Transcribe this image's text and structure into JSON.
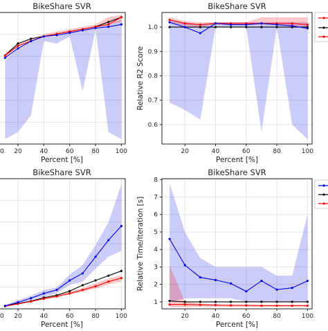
{
  "chart_data": [
    {
      "type": "line",
      "title": "BikeShare SVR",
      "xlabel": "Percent [%]",
      "ylabel": "",
      "x": [
        10,
        20,
        30,
        40,
        50,
        60,
        70,
        80,
        90,
        100
      ],
      "xlim": [
        5,
        103
      ],
      "ylim": [
        0.5,
        1.05
      ],
      "x_ticks": [
        20,
        40,
        60,
        80,
        100
      ],
      "x_tick_labels": [
        "20",
        "40",
        "60",
        "80",
        "100"
      ],
      "y_ticks": [],
      "y_tick_labels": [],
      "grid": true,
      "bands": [
        {
          "color": "#0000e0",
          "lower": [
            0.52,
            0.55,
            0.62,
            0.93,
            0.92,
            0.95,
            0.72,
            0.98,
            0.55,
            0.52
          ],
          "upper": [
            0.85,
            0.9,
            0.93,
            0.95,
            0.95,
            0.97,
            0.97,
            0.99,
            1.0,
            1.02
          ]
        },
        {
          "color": "#ff0000",
          "lower": [
            0.86,
            0.91,
            0.93,
            0.95,
            0.96,
            0.97,
            0.98,
            0.99,
            1.0,
            1.01
          ],
          "upper": [
            0.88,
            0.92,
            0.94,
            0.96,
            0.97,
            0.98,
            0.99,
            1.0,
            1.03,
            1.04
          ]
        }
      ],
      "series": [
        {
          "color": "#000000",
          "values": [
            0.87,
            0.92,
            0.94,
            0.95,
            0.96,
            0.97,
            0.98,
            0.99,
            1.01,
            1.03
          ]
        },
        {
          "color": "#ff0000",
          "values": [
            0.87,
            0.91,
            0.93,
            0.95,
            0.96,
            0.97,
            0.98,
            0.99,
            1.0,
            1.03
          ]
        },
        {
          "color": "#0000e0",
          "values": [
            0.86,
            0.9,
            0.93,
            0.95,
            0.955,
            0.965,
            0.975,
            0.985,
            0.99,
            1.0
          ]
        }
      ]
    },
    {
      "type": "line",
      "title": "BikeShare SVR",
      "xlabel": "Percent [%]",
      "ylabel": "Relative R2 Score",
      "x": [
        10,
        20,
        30,
        40,
        50,
        60,
        70,
        80,
        90,
        100
      ],
      "xlim": [
        5,
        103
      ],
      "ylim": [
        0.52,
        1.06
      ],
      "x_ticks": [
        20,
        40,
        60,
        80,
        100
      ],
      "x_tick_labels": [
        "20",
        "40",
        "60",
        "80",
        "100"
      ],
      "y_ticks": [
        0.6,
        0.7,
        0.8,
        0.9,
        1.0
      ],
      "y_tick_labels": [
        "0.6",
        "0.7",
        "0.8",
        "0.9",
        "1.0"
      ],
      "grid": true,
      "bands": [
        {
          "color": "#0000e0",
          "lower": [
            0.69,
            0.66,
            0.62,
            1.0,
            1.0,
            1.0,
            0.57,
            1.0,
            0.6,
            0.54
          ],
          "upper": [
            1.025,
            1.02,
            1.01,
            1.02,
            1.02,
            1.02,
            1.02,
            1.02,
            1.02,
            1.02
          ]
        },
        {
          "color": "#ff0000",
          "lower": [
            1.02,
            1.005,
            1.0,
            1.01,
            1.01,
            1.01,
            1.01,
            1.01,
            1.005,
            1.0
          ],
          "upper": [
            1.04,
            1.025,
            1.02,
            1.02,
            1.02,
            1.02,
            1.04,
            1.04,
            1.04,
            1.04
          ]
        }
      ],
      "series": [
        {
          "color": "#000000",
          "values": [
            1.0,
            1.0,
            1.0,
            1.0,
            1.0,
            1.0,
            1.0,
            1.0,
            1.0,
            1.0
          ]
        },
        {
          "color": "#ff0000",
          "values": [
            1.03,
            1.015,
            1.01,
            1.015,
            1.015,
            1.015,
            1.015,
            1.015,
            1.015,
            1.01
          ]
        },
        {
          "color": "#0000e0",
          "values": [
            1.02,
            1.0,
            0.975,
            1.015,
            1.01,
            1.01,
            1.015,
            1.01,
            1.005,
            0.995
          ]
        }
      ]
    },
    {
      "type": "line",
      "title": "BikeShare SVR",
      "xlabel": "Percent [%]",
      "ylabel": "",
      "x": [
        10,
        20,
        30,
        40,
        50,
        60,
        70,
        80,
        90,
        100
      ],
      "xlim": [
        5,
        103
      ],
      "ylim": [
        0,
        11
      ],
      "x_ticks": [
        20,
        40,
        60,
        80,
        100
      ],
      "x_tick_labels": [
        "20",
        "40",
        "60",
        "80",
        "100"
      ],
      "y_ticks": [],
      "y_tick_labels": [],
      "grid": true,
      "bands": [
        {
          "color": "#0000e0",
          "lower": [
            0.15,
            0.4,
            0.75,
            1.05,
            1.3,
            2.0,
            2.3,
            3.4,
            4.4,
            4.9
          ],
          "upper": [
            0.3,
            0.75,
            1.1,
            1.6,
            1.8,
            2.9,
            3.7,
            5.4,
            7.3,
            10.5
          ]
        },
        {
          "color": "#ff0000",
          "lower": [
            0.2,
            0.4,
            0.6,
            0.8,
            1.0,
            1.2,
            1.45,
            1.7,
            2.05,
            2.3
          ],
          "upper": [
            0.25,
            0.45,
            0.7,
            0.95,
            1.15,
            1.45,
            1.75,
            2.15,
            2.55,
            2.85
          ]
        }
      ],
      "series": [
        {
          "color": "#000000",
          "values": [
            0.25,
            0.45,
            0.65,
            0.95,
            1.15,
            1.5,
            2.0,
            2.4,
            2.8,
            3.2
          ]
        },
        {
          "color": "#ff0000",
          "values": [
            0.22,
            0.42,
            0.62,
            0.85,
            1.05,
            1.3,
            1.6,
            1.9,
            2.3,
            2.6
          ]
        },
        {
          "color": "#0000e0",
          "values": [
            0.25,
            0.55,
            0.9,
            1.3,
            1.6,
            2.4,
            3.0,
            4.4,
            5.8,
            7.0
          ]
        }
      ]
    },
    {
      "type": "line",
      "title": "BikeShare SVR",
      "xlabel": "Percent [%]",
      "ylabel": "Relative Time/Iteration [s]",
      "x": [
        10,
        20,
        30,
        40,
        50,
        60,
        70,
        80,
        90,
        100
      ],
      "xlim": [
        5,
        103
      ],
      "ylim": [
        0.6,
        8.05
      ],
      "x_ticks": [
        20,
        40,
        60,
        80,
        100
      ],
      "x_tick_labels": [
        "20",
        "40",
        "60",
        "80",
        "100"
      ],
      "y_ticks": [
        1,
        2,
        3,
        4,
        5,
        6,
        7,
        8
      ],
      "y_tick_labels": [
        "1",
        "2",
        "3",
        "4",
        "5",
        "6",
        "7",
        "8"
      ],
      "grid": true,
      "bands": [
        {
          "color": "#0000e0",
          "lower": [
            1.0,
            1.2,
            1.2,
            1.2,
            1.2,
            1.0,
            1.0,
            1.0,
            1.0,
            1.0
          ],
          "upper": [
            7.8,
            5.0,
            3.5,
            3.0,
            3.0,
            3.0,
            3.0,
            2.5,
            2.5,
            6.0
          ]
        },
        {
          "color": "#ff0000",
          "lower": [
            0.7,
            0.7,
            0.72,
            0.72,
            0.72,
            0.72,
            0.72,
            0.72,
            0.72,
            0.72
          ],
          "upper": [
            3.1,
            1.0,
            0.9,
            0.85,
            0.85,
            0.85,
            0.85,
            0.85,
            0.85,
            0.85
          ]
        }
      ],
      "series": [
        {
          "color": "#000000",
          "values": [
            1.05,
            1.0,
            1.0,
            1.0,
            1.0,
            1.0,
            1.0,
            1.0,
            1.0,
            1.0
          ]
        },
        {
          "color": "#ff0000",
          "values": [
            0.85,
            0.85,
            0.83,
            0.82,
            0.8,
            0.8,
            0.78,
            0.78,
            0.78,
            0.78
          ]
        },
        {
          "color": "#0000e0",
          "values": [
            4.6,
            3.1,
            2.4,
            2.25,
            2.05,
            1.6,
            2.2,
            1.7,
            1.8,
            2.2
          ]
        }
      ]
    }
  ]
}
